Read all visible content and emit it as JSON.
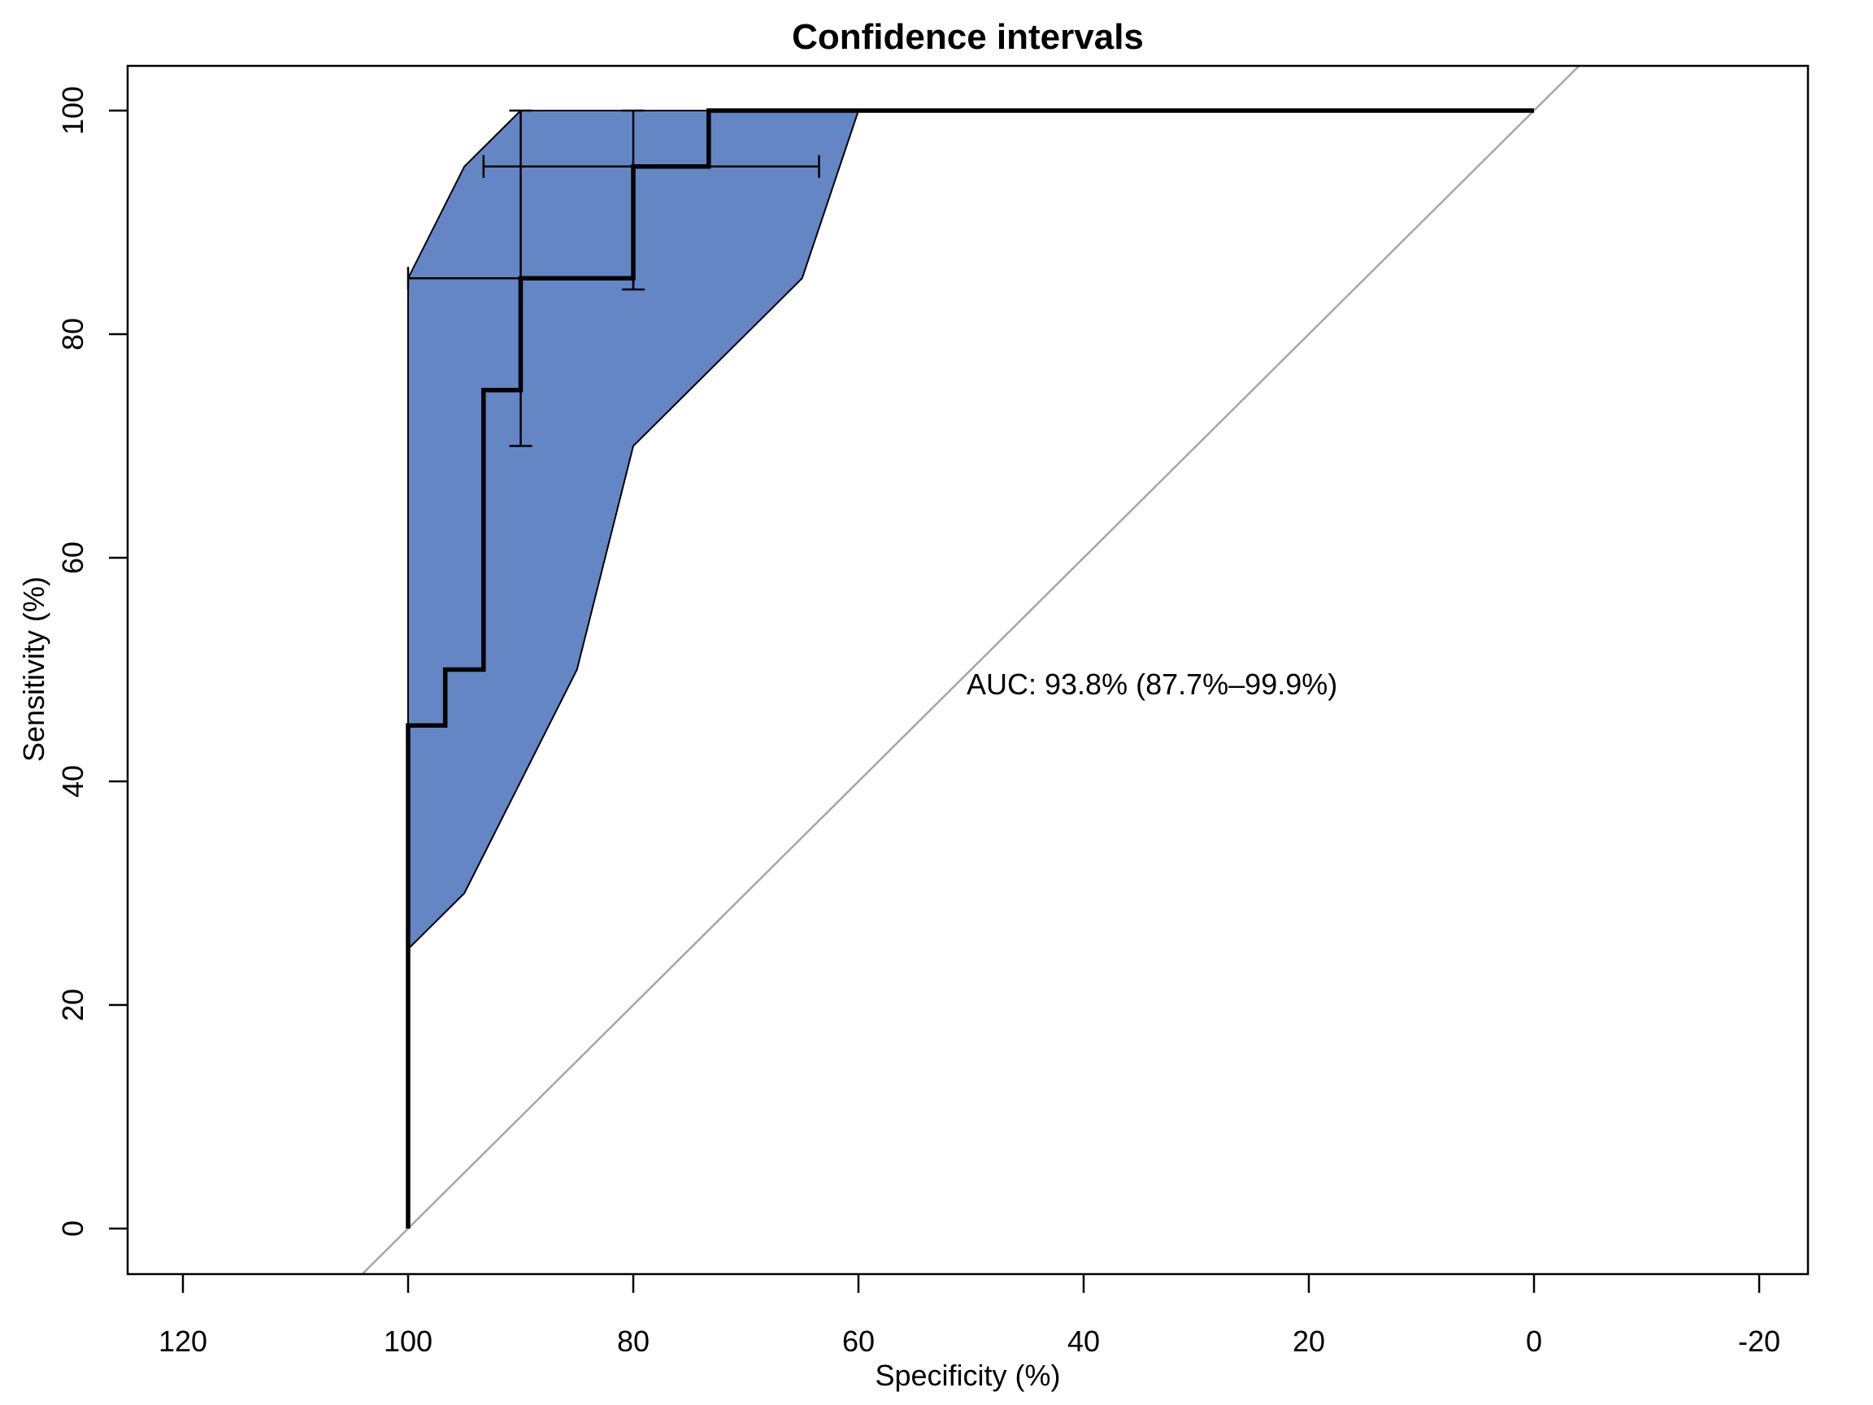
{
  "title": "Confidence intervals",
  "axes": {
    "x_label": "Specificity (%)",
    "y_label": "Sensitivity (%)"
  },
  "annotation": {
    "auc_text": "AUC: 93.8% (87.7%–99.9%)"
  },
  "colors": {
    "band_fill": "#6486C5",
    "band_border": "#000000",
    "curve": "#000000",
    "error_bar": "#000000",
    "diagonal": "#A6A6A6",
    "box": "#000000",
    "text": "#000000",
    "background": "#FFFFFF"
  },
  "chart_data": {
    "type": "line",
    "title": "Confidence intervals",
    "xlabel": "Specificity (%)",
    "ylabel": "Sensitivity (%)",
    "x_axis_reversed": true,
    "x_ticks": [
      120,
      100,
      80,
      60,
      40,
      20,
      0,
      -20
    ],
    "y_ticks": [
      0,
      20,
      40,
      60,
      80,
      100
    ],
    "x_range_displayed": [
      125,
      -25
    ],
    "y_range_displayed": [
      -4,
      104
    ],
    "grid": false,
    "legend": null,
    "roc_curve": {
      "specificity": [
        100,
        100,
        96.7,
        96.7,
        93.3,
        93.3,
        90,
        90,
        80,
        80,
        73.3,
        73.3,
        0
      ],
      "sensitivity": [
        0,
        45,
        45,
        50,
        50,
        75,
        75,
        85,
        85,
        95,
        95,
        100,
        100
      ]
    },
    "confidence_band": {
      "specificities": [
        100,
        95,
        90,
        85,
        80,
        75,
        70,
        65,
        60
      ],
      "sens_lower": [
        25,
        30,
        40,
        50,
        70,
        75,
        80,
        85,
        100
      ],
      "sens_upper": [
        85,
        95,
        100,
        100,
        100,
        100,
        100,
        100,
        100
      ]
    },
    "threshold_cis": [
      {
        "specificity": 90,
        "sensitivity": 85,
        "sens_ci": [
          70,
          100
        ],
        "spec_ci": [
          80,
          100
        ]
      },
      {
        "specificity": 80,
        "sensitivity": 95,
        "sens_ci": [
          84,
          100
        ],
        "spec_ci": [
          63.5,
          93.3
        ]
      }
    ],
    "diagonal_reference_line": {
      "from": [
        104,
        -4
      ],
      "to": [
        -4,
        104
      ]
    },
    "auc": {
      "value": "93.8%",
      "ci_low": "87.7%",
      "ci_high": "99.9%"
    }
  }
}
